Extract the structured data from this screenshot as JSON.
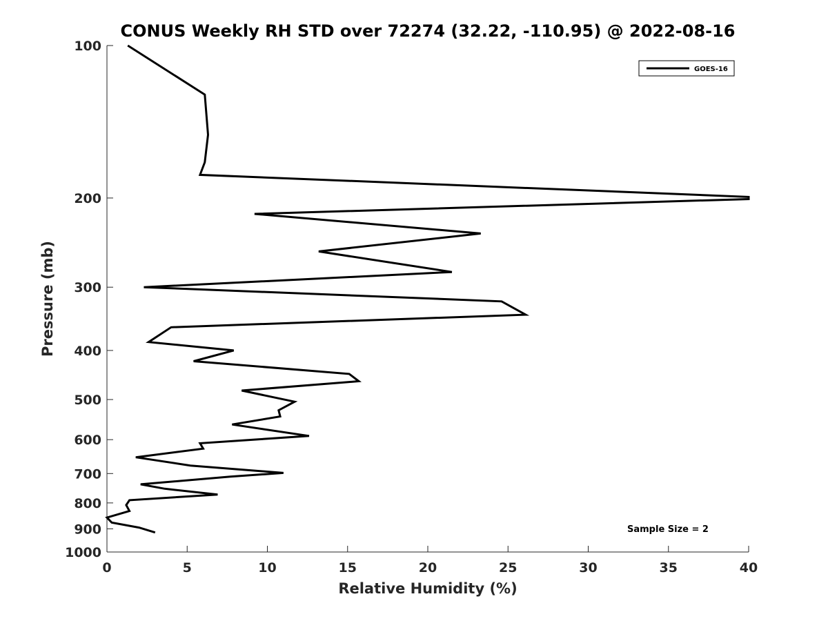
{
  "chart_data": {
    "type": "line",
    "title": "CONUS Weekly RH STD over 72274 (32.22, -110.95) @ 2022-08-16",
    "xlabel": "Relative Humidity (%)",
    "ylabel": "Pressure (mb)",
    "xlim": [
      0,
      40
    ],
    "ylim": [
      100,
      1000
    ],
    "yscale": "log",
    "reversed_y": true,
    "grid": false,
    "x_ticks": [
      0,
      5,
      10,
      15,
      20,
      25,
      30,
      35,
      40
    ],
    "x_tick_labels": [
      "0",
      "5",
      "10",
      "15",
      "20",
      "25",
      "30",
      "35",
      "40"
    ],
    "y_ticks": [
      100,
      200,
      300,
      400,
      500,
      600,
      700,
      800,
      900,
      1000
    ],
    "y_tick_labels": [
      "100",
      "200",
      "300",
      "400",
      "500",
      "600",
      "700",
      "800",
      "900",
      "1000"
    ],
    "legend_position": "top-right",
    "series": [
      {
        "name": "GOES-16",
        "color": "#000000",
        "points": [
          [
            1.3,
            100
          ],
          [
            6.1,
            125
          ],
          [
            6.3,
            150
          ],
          [
            6.1,
            170
          ],
          [
            5.8,
            180
          ],
          [
            40.0,
            199
          ],
          [
            40.0,
            201
          ],
          [
            9.2,
            215
          ],
          [
            23.3,
            235
          ],
          [
            13.2,
            255
          ],
          [
            21.5,
            280
          ],
          [
            2.3,
            300
          ],
          [
            24.6,
            320
          ],
          [
            26.1,
            340
          ],
          [
            4.0,
            360
          ],
          [
            2.6,
            385
          ],
          [
            7.9,
            400
          ],
          [
            5.4,
            420
          ],
          [
            15.1,
            445
          ],
          [
            15.7,
            460
          ],
          [
            8.4,
            480
          ],
          [
            11.7,
            505
          ],
          [
            10.7,
            525
          ],
          [
            10.8,
            540
          ],
          [
            7.8,
            560
          ],
          [
            12.6,
            590
          ],
          [
            5.8,
            610
          ],
          [
            6.0,
            625
          ],
          [
            1.8,
            650
          ],
          [
            5.2,
            675
          ],
          [
            11.0,
            698
          ],
          [
            7.7,
            710
          ],
          [
            2.1,
            735
          ],
          [
            3.6,
            750
          ],
          [
            6.9,
            770
          ],
          [
            1.4,
            790
          ],
          [
            1.2,
            808
          ],
          [
            1.4,
            830
          ],
          [
            0.0,
            855
          ],
          [
            0.3,
            875
          ],
          [
            2.0,
            895
          ],
          [
            3.0,
            915
          ]
        ]
      }
    ],
    "annotation": "Sample Size = 2"
  }
}
